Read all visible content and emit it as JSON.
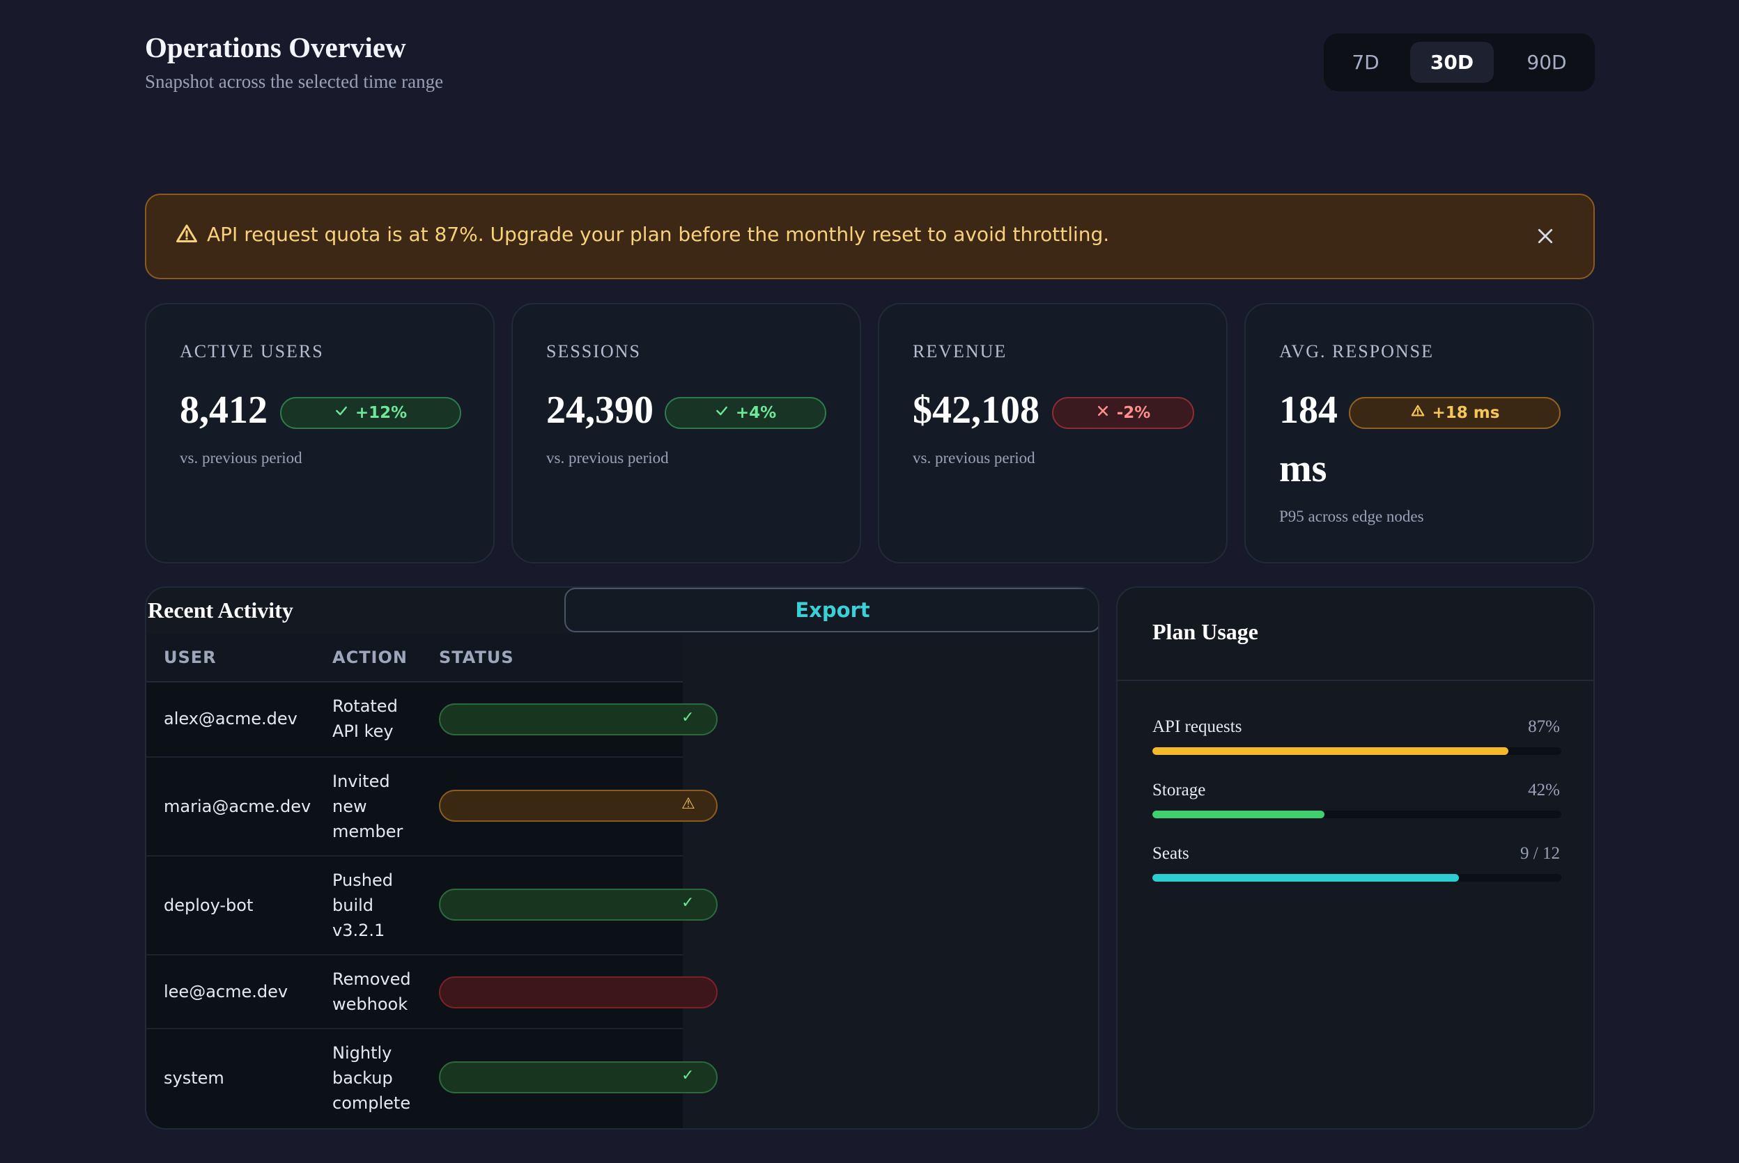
{
  "header": {
    "title": "Operations Overview",
    "subtitle": "Snapshot across the selected time range",
    "ranges": [
      {
        "label": "7D",
        "active": false
      },
      {
        "label": "30D",
        "active": true
      },
      {
        "label": "90D",
        "active": false
      }
    ]
  },
  "alert": {
    "icon": "warning-triangle-icon",
    "text": "API request quota is at 87%. Upgrade your plan before the monthly reset to avoid throttling.",
    "close_icon": "close-icon"
  },
  "metrics": [
    {
      "label": "ACTIVE USERS",
      "value": "8,412",
      "badge": "+12%",
      "badge_icon": "check-icon",
      "badge_tone": "green",
      "note": "vs. previous period"
    },
    {
      "label": "SESSIONS",
      "value": "24,390",
      "badge": "+4%",
      "badge_icon": "check-icon",
      "badge_tone": "green",
      "note": "vs. previous period"
    },
    {
      "label": "REVENUE",
      "value": "$42,108",
      "badge": "-2%",
      "badge_icon": "x-icon",
      "badge_tone": "red",
      "note": "vs. previous period"
    },
    {
      "label": "AVG. RESPONSE",
      "value_line1": "184",
      "value_line2": "ms",
      "badge": "+18 ms",
      "badge_icon": "warning-triangle-icon",
      "badge_tone": "amber",
      "note": "P95 across edge nodes"
    }
  ],
  "activity": {
    "title": "Recent Activity",
    "export_label": "Export",
    "columns": [
      "USER",
      "ACTION",
      "STATUS"
    ],
    "rows": [
      {
        "user": "alex@acme.dev",
        "action": "Rotated API key",
        "status_tone": "green",
        "status_glyph": "✓"
      },
      {
        "user": "maria@acme.dev",
        "action": "Invited new member",
        "status_tone": "amber",
        "status_glyph": "⚠"
      },
      {
        "user": "deploy-bot",
        "action": "Pushed build v3.2.1",
        "status_tone": "green",
        "status_glyph": "✓"
      },
      {
        "user": "lee@acme.dev",
        "action": "Removed webhook",
        "status_tone": "red",
        "status_glyph": ""
      },
      {
        "user": "system",
        "action": "Nightly backup complete",
        "status_tone": "green",
        "status_glyph": "✓"
      }
    ]
  },
  "plan": {
    "title": "Plan Usage",
    "items": [
      {
        "label": "API requests",
        "value": "87%",
        "fraction": 0.87,
        "color": "#f6b92b"
      },
      {
        "label": "Storage",
        "value": "42%",
        "fraction": 0.42,
        "color": "#3fcf6e"
      },
      {
        "label": "Seats",
        "value": "9 / 12",
        "fraction": 0.75,
        "color": "#2ccfd0"
      }
    ]
  },
  "colors": {
    "background": "#181a2c",
    "card": "#151b26",
    "accent_teal": "#3ad0d6",
    "warning": "#f6c658",
    "success": "#6ee79a",
    "danger": "#ff8e8e"
  }
}
